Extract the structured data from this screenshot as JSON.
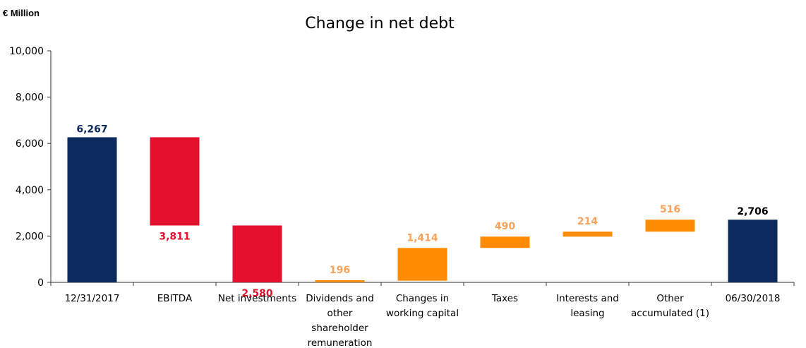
{
  "unit_label": "€ Million",
  "chart_data": {
    "type": "bar",
    "subtype": "waterfall",
    "title": "Change in net debt",
    "ylabel": "",
    "xlabel": "",
    "ylim": [
      0,
      10000
    ],
    "yticks": [
      "0",
      "2,000",
      "4,000",
      "6,000",
      "8,000",
      "10,000"
    ],
    "ytick_values": [
      0,
      2000,
      4000,
      6000,
      8000,
      10000
    ],
    "grid": false,
    "colors": {
      "total": "#0b2a5e",
      "decrease": "#e3112e",
      "increase": "#ff8c00",
      "increase_label": "#f7a35c",
      "total_last_label": "#000000"
    },
    "bars": [
      {
        "category": [
          "12/31/2017"
        ],
        "kind": "total",
        "start": 0,
        "end": 6267,
        "value": 6267,
        "label": "6,267"
      },
      {
        "category": [
          "EBITDA"
        ],
        "kind": "decrease",
        "start": 2456,
        "end": 6267,
        "value": 3811,
        "label": "3,811"
      },
      {
        "category": [
          "Net investments"
        ],
        "kind": "decrease",
        "start": -124,
        "end": 2456,
        "value": 2580,
        "label": "2,580"
      },
      {
        "category": [
          "Dividends and",
          "other",
          "shareholder",
          "remuneration"
        ],
        "kind": "increase",
        "start": -124,
        "end": 72,
        "value": 196,
        "label": "196"
      },
      {
        "category": [
          "Changes in",
          "working capital"
        ],
        "kind": "increase",
        "start": 72,
        "end": 1486,
        "value": 1414,
        "label": "1,414"
      },
      {
        "category": [
          "Taxes"
        ],
        "kind": "increase",
        "start": 1486,
        "end": 1976,
        "value": 490,
        "label": "490"
      },
      {
        "category": [
          "Interests and",
          "leasing"
        ],
        "kind": "increase",
        "start": 1976,
        "end": 2190,
        "value": 214,
        "label": "214"
      },
      {
        "category": [
          "Other",
          "accumulated (1)"
        ],
        "kind": "increase",
        "start": 2190,
        "end": 2706,
        "value": 516,
        "label": "516"
      },
      {
        "category": [
          "06/30/2018"
        ],
        "kind": "total",
        "start": 0,
        "end": 2706,
        "value": 2706,
        "label": "2,706"
      }
    ]
  }
}
